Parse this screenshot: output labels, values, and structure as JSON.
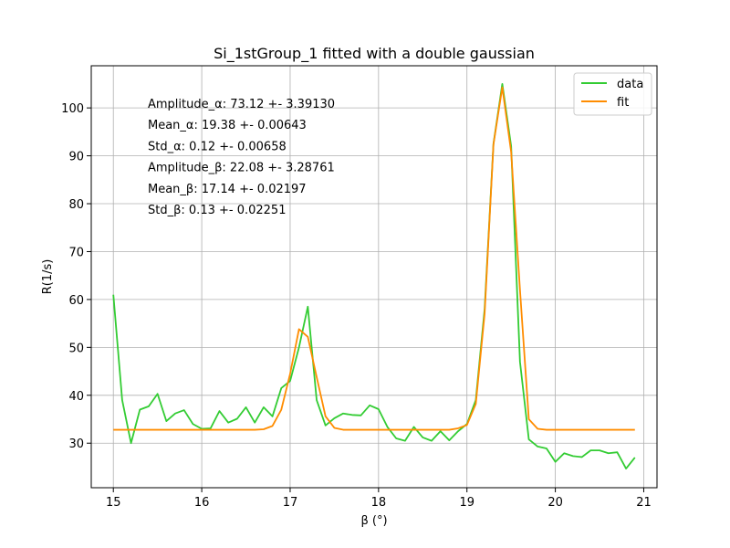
{
  "chart_data": {
    "type": "line",
    "title": "Si_1stGroup_1 fitted with a double gaussian",
    "xlabel": "β (°)",
    "ylabel": "R(1/s)",
    "xlim": [
      14.75,
      21.15
    ],
    "ylim": [
      20.7,
      108.8
    ],
    "xticks": [
      15,
      16,
      17,
      18,
      19,
      20,
      21
    ],
    "yticks": [
      30,
      40,
      50,
      60,
      70,
      80,
      90,
      100
    ],
    "grid": true,
    "legend_position": "top-right",
    "annotations": [
      "Amplitude_α: 73.12 +- 3.39130",
      "Mean_α: 19.38 +- 0.00643",
      "Std_α: 0.12 +- 0.00658",
      "Amplitude_β: 22.08 +- 3.28761",
      "Mean_β: 17.14 +- 0.02197",
      "Std_β: 0.13 +- 0.02251"
    ],
    "x": [
      15.0,
      15.1,
      15.2,
      15.3,
      15.4,
      15.5,
      15.6,
      15.7,
      15.8,
      15.9,
      16.0,
      16.1,
      16.2,
      16.3,
      16.4,
      16.5,
      16.6,
      16.7,
      16.8,
      16.9,
      17.0,
      17.1,
      17.2,
      17.3,
      17.4,
      17.5,
      17.6,
      17.7,
      17.8,
      17.9,
      18.0,
      18.1,
      18.2,
      18.3,
      18.4,
      18.5,
      18.6,
      18.7,
      18.8,
      18.9,
      19.0,
      19.1,
      19.2,
      19.3,
      19.4,
      19.5,
      19.6,
      19.7,
      19.8,
      19.9,
      20.0,
      20.1,
      20.2,
      20.3,
      20.4,
      20.5,
      20.6,
      20.7,
      20.8,
      20.9
    ],
    "series": [
      {
        "name": "data",
        "color": "#33cc33",
        "values": [
          61.0,
          39.0,
          30.0,
          37.0,
          37.7,
          40.3,
          34.6,
          36.2,
          36.9,
          34.0,
          33.0,
          33.1,
          36.7,
          34.3,
          35.1,
          37.5,
          34.3,
          37.5,
          35.6,
          41.5,
          43.0,
          50.0,
          58.5,
          39.0,
          33.7,
          35.2,
          36.2,
          35.9,
          35.8,
          37.9,
          37.1,
          33.4,
          31.0,
          30.5,
          33.4,
          31.2,
          30.5,
          32.5,
          30.6,
          32.5,
          34.0,
          39.0,
          58.0,
          92.5,
          105.0,
          92.0,
          47.0,
          30.8,
          29.3,
          28.9,
          26.1,
          27.9,
          27.3,
          27.1,
          28.5,
          28.5,
          27.9,
          28.1,
          24.7,
          27.0
        ]
      },
      {
        "name": "fit",
        "color": "#ff8c00",
        "values": [
          32.8,
          32.8,
          32.8,
          32.8,
          32.8,
          32.8,
          32.8,
          32.8,
          32.8,
          32.8,
          32.8,
          32.8,
          32.8,
          32.8,
          32.8,
          32.8,
          32.8,
          32.9,
          33.6,
          37.0,
          44.5,
          53.8,
          52.2,
          43.8,
          35.6,
          33.2,
          32.8,
          32.8,
          32.8,
          32.8,
          32.8,
          32.8,
          32.8,
          32.8,
          32.8,
          32.8,
          32.8,
          32.8,
          32.8,
          33.1,
          33.8,
          38.2,
          57.0,
          92.4,
          104.3,
          90.8,
          62.0,
          35.0,
          33.0,
          32.8,
          32.8,
          32.8,
          32.8,
          32.8,
          32.8,
          32.8,
          32.8,
          32.8,
          32.8,
          32.8
        ]
      }
    ]
  }
}
